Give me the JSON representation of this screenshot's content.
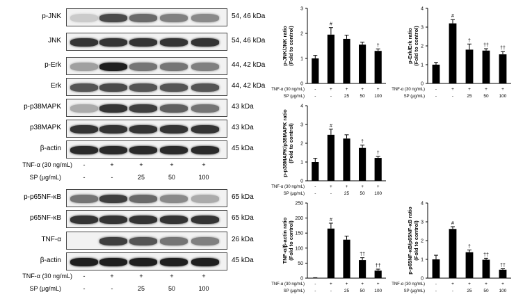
{
  "blots_top": [
    {
      "label": "p-JNK",
      "mw": "54, 46 kDa",
      "intensity": [
        0.15,
        0.75,
        0.6,
        0.5,
        0.45
      ]
    },
    {
      "label": "JNK",
      "mw": "54, 46 kDa",
      "intensity": [
        0.85,
        0.85,
        0.85,
        0.85,
        0.85
      ]
    },
    {
      "label": "p-Erk",
      "mw": "44, 42 kDa",
      "intensity": [
        0.35,
        0.95,
        0.55,
        0.55,
        0.5
      ]
    },
    {
      "label": "Erk",
      "mw": "44, 42 kDa",
      "intensity": [
        0.7,
        0.75,
        0.7,
        0.7,
        0.7
      ]
    },
    {
      "label": "p-p38MAPK",
      "mw": "43 kDa",
      "intensity": [
        0.3,
        0.85,
        0.8,
        0.65,
        0.55
      ]
    },
    {
      "label": "p38MAPK",
      "mw": "43 kDa",
      "intensity": [
        0.85,
        0.85,
        0.85,
        0.85,
        0.85
      ]
    },
    {
      "label": "β-actin",
      "mw": "45 kDa",
      "intensity": [
        0.9,
        0.9,
        0.9,
        0.9,
        0.9
      ]
    }
  ],
  "blots_bottom": [
    {
      "label": "p-p65NF-κB",
      "mw": "65 kDa",
      "intensity": [
        0.55,
        0.8,
        0.6,
        0.45,
        0.3
      ]
    },
    {
      "label": "p65NF-κB",
      "mw": "65 kDa",
      "intensity": [
        0.85,
        0.85,
        0.85,
        0.85,
        0.85
      ]
    },
    {
      "label": "TNF-α",
      "mw": "26 kDa",
      "intensity": [
        0.0,
        0.8,
        0.7,
        0.55,
        0.5
      ]
    },
    {
      "label": "β-actin",
      "mw": "45 kDa",
      "intensity": [
        0.95,
        0.95,
        0.95,
        0.95,
        0.95
      ]
    }
  ],
  "treatment_top": {
    "tnf_label": "TNF-α (30 ng/mL)",
    "tnf_values": [
      "-",
      "+",
      "+",
      "+",
      "+"
    ],
    "sp_label": "SP (μg/mL)",
    "sp_values": [
      "-",
      "-",
      "25",
      "50",
      "100"
    ]
  },
  "treatment_bottom": {
    "tnf_label": "TNF-α (30 ng/mL)",
    "tnf_values": [
      "-",
      "+",
      "+",
      "+",
      "+"
    ],
    "sp_label": "SP (μg/mL)",
    "sp_values": [
      "-",
      "-",
      "25",
      "50",
      "100"
    ]
  },
  "chart_data": [
    {
      "type": "bar",
      "title": "",
      "ylabel": "p-JNK/JNK ratio (Fold to control)",
      "ylim": [
        0,
        3
      ],
      "yticks": [
        "0",
        "1",
        "2",
        "3"
      ],
      "values": [
        1.0,
        1.95,
        1.78,
        1.55,
        1.3
      ],
      "errors": [
        0.12,
        0.28,
        0.15,
        0.1,
        0.08
      ],
      "marks": [
        "",
        "#",
        "",
        "",
        "†"
      ],
      "xrow1_label": "TNF-α (30 ng/mL)",
      "xrow1": [
        "-",
        "+",
        "+",
        "+",
        "+"
      ],
      "xrow2_label": "SP (μg/mL)",
      "xrow2": [
        "-",
        "-",
        "25",
        "50",
        "100"
      ]
    },
    {
      "type": "bar",
      "title": "",
      "ylabel": "p-Erk/Erk ratio (Fold to control)",
      "ylim": [
        0,
        4
      ],
      "yticks": [
        "0",
        "1",
        "2",
        "3",
        "4"
      ],
      "values": [
        1.0,
        3.2,
        1.8,
        1.75,
        1.55
      ],
      "errors": [
        0.12,
        0.2,
        0.3,
        0.1,
        0.15
      ],
      "marks": [
        "",
        "#",
        "†",
        "††",
        "††"
      ],
      "xrow1_label": "TNF-α (30 ng/mL)",
      "xrow1": [
        "-",
        "+",
        "+",
        "+",
        "+"
      ],
      "xrow2_label": "SP (μg/mL)",
      "xrow2": [
        "-",
        "-",
        "25",
        "50",
        "100"
      ]
    },
    {
      "type": "bar",
      "title": "",
      "ylabel": "p-p38MAPK/p38MAPK ratio (Fold to control)",
      "ylim": [
        0,
        4
      ],
      "yticks": [
        "0",
        "1",
        "2",
        "3",
        "4"
      ],
      "values": [
        1.0,
        2.45,
        2.25,
        1.75,
        1.22
      ],
      "errors": [
        0.2,
        0.3,
        0.2,
        0.15,
        0.08
      ],
      "marks": [
        "",
        "#",
        "",
        "†",
        "†"
      ],
      "xrow1_label": "TNF-α (30 ng/mL)",
      "xrow1": [
        "-",
        "+",
        "+",
        "+",
        "+"
      ],
      "xrow2_label": "SP (μg/mL)",
      "xrow2": [
        "-",
        "-",
        "25",
        "50",
        "100"
      ]
    },
    {
      "type": "bar",
      "title": "",
      "ylabel": "TNF-α/β-actin ratio (Fold to control)",
      "ylim": [
        0,
        250
      ],
      "yticks": [
        "0",
        "50",
        "100",
        "150",
        "200",
        "250"
      ],
      "values": [
        1,
        165,
        128,
        60,
        25
      ],
      "errors": [
        0.5,
        18,
        12,
        8,
        5
      ],
      "marks": [
        "",
        "#",
        "",
        "††",
        "††"
      ],
      "xrow1_label": "TNF-α (30 ng/mL)",
      "xrow1": [
        "-",
        "+",
        "+",
        "+",
        "+"
      ],
      "xrow2_label": "SP (μg/mL)",
      "xrow2": [
        "-",
        "-",
        "25",
        "50",
        "100"
      ]
    },
    {
      "type": "bar",
      "title": "",
      "ylabel": "p-p65NF-κB/p65NF-κB ratio (Fold to control)",
      "ylim": [
        0,
        4
      ],
      "yticks": [
        "0",
        "1",
        "2",
        "3",
        "4"
      ],
      "values": [
        1.0,
        2.62,
        1.38,
        0.98,
        0.45
      ],
      "errors": [
        0.22,
        0.12,
        0.12,
        0.08,
        0.05
      ],
      "marks": [
        "",
        "#",
        "†",
        "††",
        "††"
      ],
      "xrow1_label": "TNF-α (30 ng/mL)",
      "xrow1": [
        "-",
        "+",
        "+",
        "+",
        "+"
      ],
      "xrow2_label": "SP (μg/mL)",
      "xrow2": [
        "-",
        "-",
        "25",
        "50",
        "100"
      ]
    }
  ]
}
